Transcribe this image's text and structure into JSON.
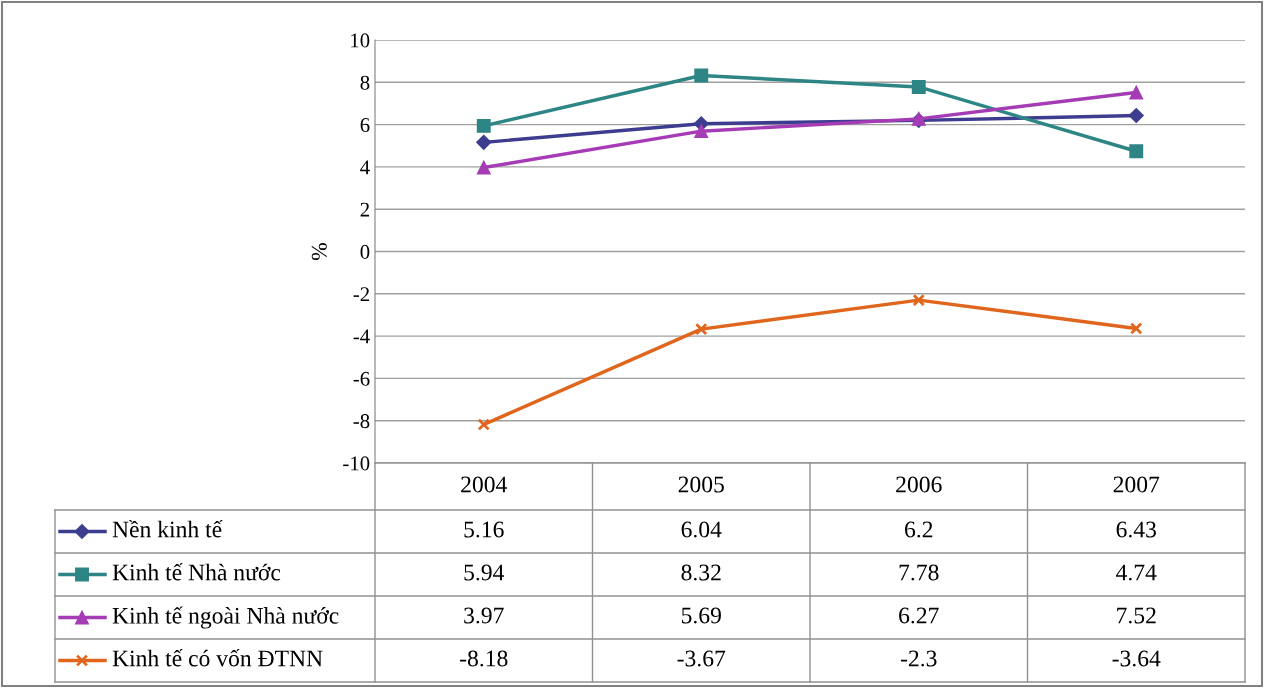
{
  "chart_data": {
    "type": "line",
    "ylabel": "%",
    "categories": [
      "2004",
      "2005",
      "2006",
      "2007"
    ],
    "series": [
      {
        "name": "Nền kinh tế",
        "color": "#3d3d8f",
        "marker": "diamond",
        "values": [
          5.16,
          6.04,
          6.2,
          6.43
        ]
      },
      {
        "name": "Kinh tế Nhà nước",
        "color": "#2e8585",
        "marker": "square",
        "values": [
          5.94,
          8.32,
          7.78,
          4.74
        ]
      },
      {
        "name": "Kinh tế ngoài Nhà nước",
        "color": "#a53cb5",
        "marker": "triangle",
        "values": [
          3.97,
          5.69,
          6.27,
          7.52
        ]
      },
      {
        "name": "Kinh tế có vốn ĐTNN",
        "color": "#e0661e",
        "marker": "cross",
        "values": [
          -8.18,
          -3.67,
          -2.3,
          -3.64
        ]
      }
    ],
    "ylim": [
      -10,
      10
    ],
    "yticks": [
      -10,
      -8,
      -6,
      -4,
      -2,
      0,
      2,
      4,
      6,
      8,
      10
    ],
    "grid": "y",
    "legend": "bottom",
    "data_labels": true
  }
}
